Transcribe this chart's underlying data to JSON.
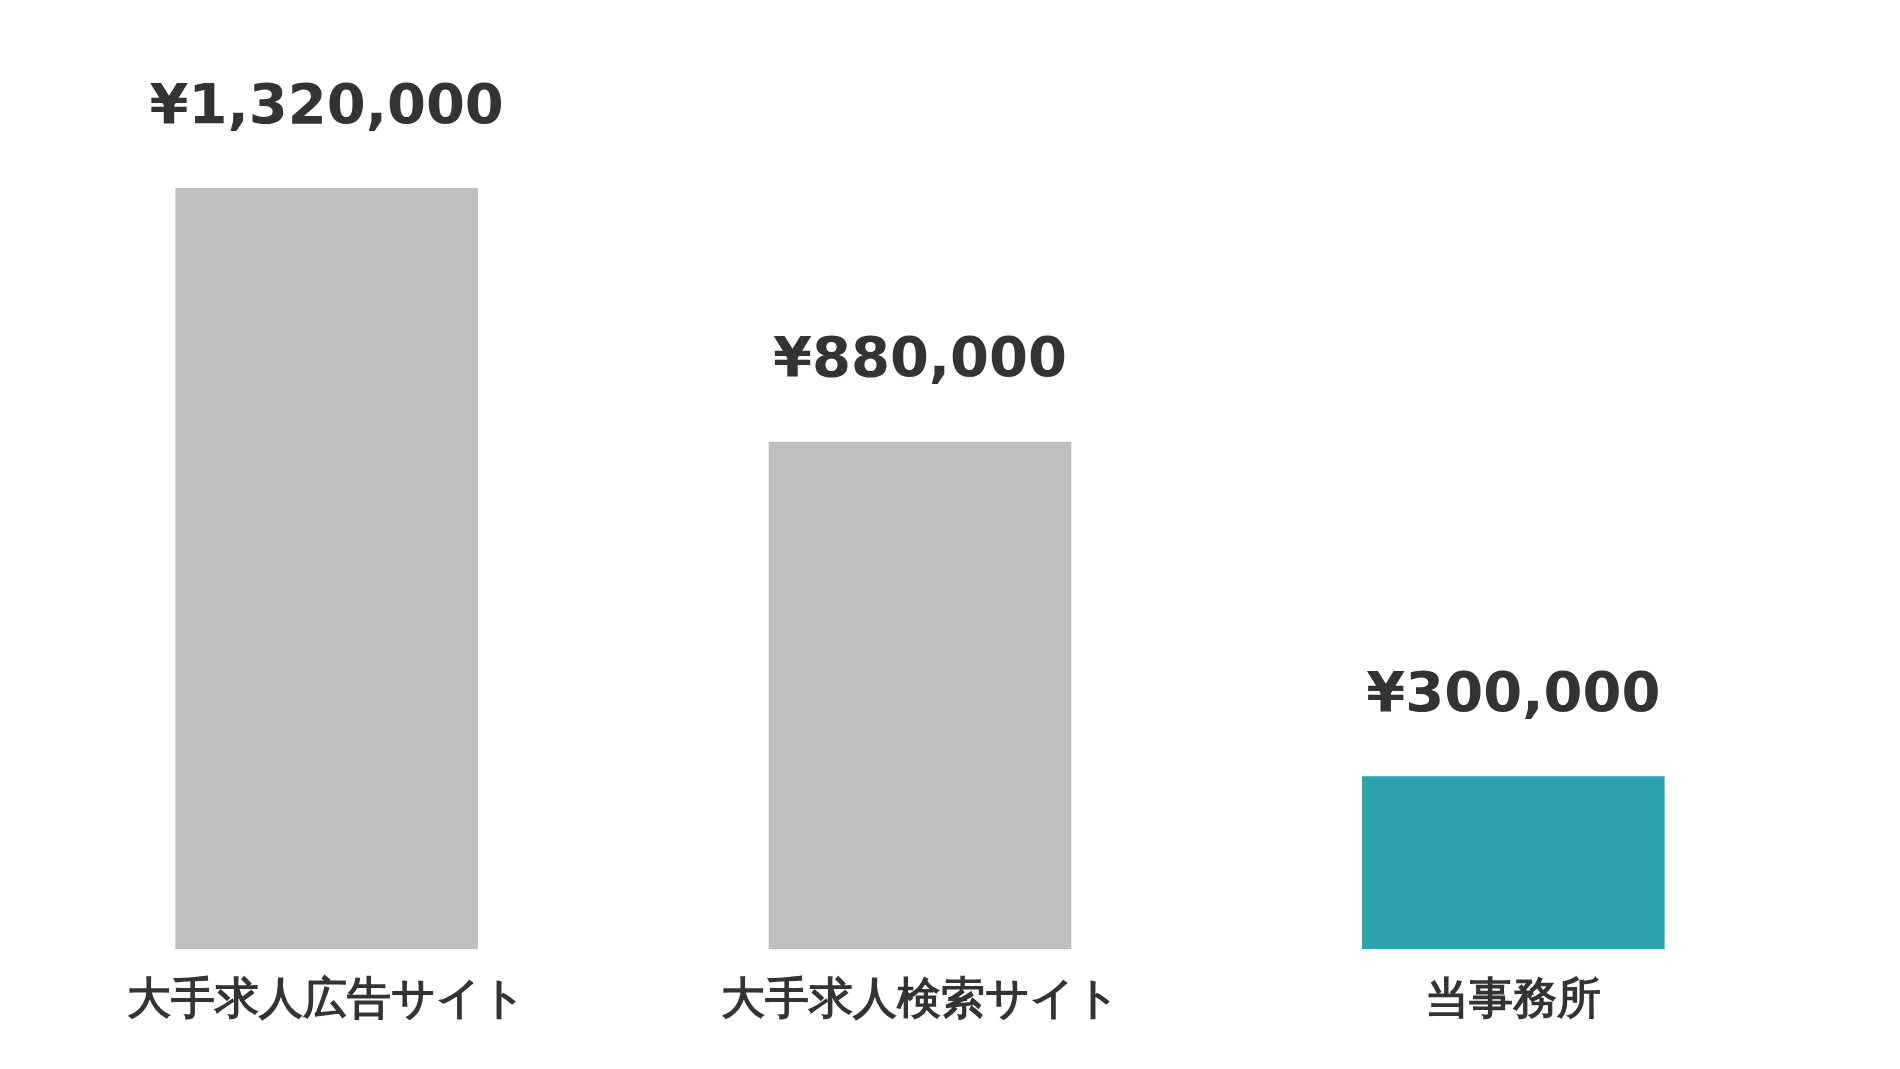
{
  "chart_data": {
    "type": "bar",
    "categories": [
      "大手求人広告サイト",
      "大手求人検索サイト",
      "当事務所"
    ],
    "values": [
      1320000,
      880000,
      300000
    ],
    "colors": [
      "#bfbfbf",
      "#bfbfbf",
      "#2ea3b0"
    ],
    "value_labels": [
      "¥1,320,000",
      "¥880,000",
      "¥300,000"
    ],
    "grid": false,
    "legend": false,
    "tick_labels": "x"
  }
}
